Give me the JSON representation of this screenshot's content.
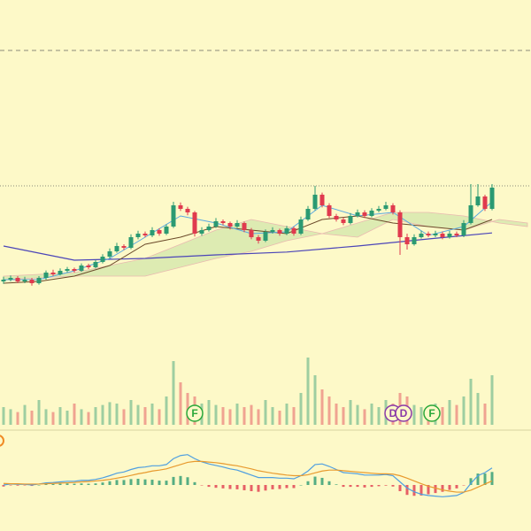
{
  "chart_data": {
    "type": "candlestick",
    "colors": {
      "up": "#2b9a72",
      "down": "#e03a4e",
      "ma_long": "#4b45b8",
      "ma_fast": "#5aa9e0",
      "ma_slow": "#6b4a2a",
      "cloud": "#cfe6a8",
      "macd": "#4f9fe0",
      "signal": "#e89a2e"
    },
    "ylim": [
      0,
      100
    ],
    "reference_lines": [
      85.75,
      47.5
    ],
    "candles": [
      [
        20.5,
        21.8,
        19.8,
        21
      ],
      [
        21,
        22.2,
        20.5,
        21.5
      ],
      [
        21.5,
        22,
        20,
        20.5
      ],
      [
        20.5,
        21.8,
        20,
        21
      ],
      [
        21,
        21.5,
        19.3,
        20
      ],
      [
        20,
        22,
        19.6,
        21.5
      ],
      [
        21.5,
        23.6,
        21,
        23
      ],
      [
        23,
        23.8,
        22,
        22.5
      ],
      [
        22.5,
        24.2,
        22.2,
        23.5
      ],
      [
        23.5,
        24.6,
        23,
        24
      ],
      [
        24,
        24.4,
        23,
        23.5
      ],
      [
        23.5,
        25.6,
        23.2,
        25
      ],
      [
        25,
        25.5,
        24,
        24.5
      ],
      [
        24.5,
        26.6,
        24.2,
        26
      ],
      [
        26,
        28.2,
        25.6,
        27.5
      ],
      [
        27.5,
        29.8,
        27,
        29
      ],
      [
        29,
        31.4,
        28.6,
        30.5
      ],
      [
        30.5,
        31,
        29.4,
        30
      ],
      [
        30,
        33.8,
        29.6,
        33
      ],
      [
        33,
        34.8,
        32.4,
        34
      ],
      [
        34,
        34.6,
        33,
        33.5
      ],
      [
        33.5,
        35.8,
        33,
        35
      ],
      [
        35,
        35.5,
        33.4,
        34
      ],
      [
        34,
        36.6,
        33.6,
        36
      ],
      [
        36,
        43,
        35.6,
        42
      ],
      [
        42,
        42.8,
        40.4,
        41
      ],
      [
        41,
        41.6,
        39.2,
        40
      ],
      [
        40,
        40.4,
        33.2,
        34
      ],
      [
        34,
        35.8,
        33.4,
        35
      ],
      [
        35,
        36.8,
        34.6,
        36
      ],
      [
        36,
        38.4,
        35.6,
        37.5
      ],
      [
        37.5,
        38,
        36.4,
        37
      ],
      [
        37,
        37.4,
        35.2,
        36
      ],
      [
        36,
        37.8,
        35.6,
        37
      ],
      [
        37,
        37.4,
        34.4,
        35
      ],
      [
        35,
        35.6,
        32.4,
        33
      ],
      [
        33,
        33.6,
        31.2,
        32
      ],
      [
        32,
        35.2,
        31.6,
        34.5
      ],
      [
        34.5,
        35.8,
        34,
        35
      ],
      [
        35,
        35.4,
        33.4,
        34
      ],
      [
        34,
        36.2,
        33.6,
        35.5
      ],
      [
        35.5,
        36,
        33.4,
        34
      ],
      [
        34,
        38.8,
        33.6,
        38
      ],
      [
        38,
        41.8,
        37.6,
        41
      ],
      [
        41,
        47.5,
        40.6,
        45
      ],
      [
        45,
        45.6,
        41.4,
        42
      ],
      [
        42,
        42.6,
        38.4,
        39
      ],
      [
        39,
        39.6,
        37.4,
        38
      ],
      [
        38,
        38.6,
        36.4,
        37
      ],
      [
        37,
        39.8,
        36.6,
        39
      ],
      [
        39,
        40.8,
        38.6,
        40
      ],
      [
        40,
        40.6,
        38.4,
        39
      ],
      [
        39,
        41.2,
        38.6,
        40.5
      ],
      [
        40.5,
        41.8,
        40,
        41
      ],
      [
        41,
        43,
        40.6,
        42
      ],
      [
        42,
        42.6,
        39.4,
        40
      ],
      [
        40,
        40.6,
        28,
        33
      ],
      [
        33,
        34,
        29.5,
        31
      ],
      [
        31,
        33.8,
        30.6,
        33
      ],
      [
        33,
        34.8,
        32.6,
        34
      ],
      [
        34,
        34.6,
        33,
        33.5
      ],
      [
        33.5,
        34.8,
        33,
        34
      ],
      [
        34,
        34.6,
        32.4,
        33
      ],
      [
        33,
        34.8,
        32.6,
        34
      ],
      [
        34,
        34.6,
        33,
        33.5
      ],
      [
        33.5,
        37.8,
        33,
        37
      ],
      [
        37,
        48,
        36.6,
        42
      ],
      [
        42,
        48,
        41.6,
        44.5
      ],
      [
        44.5,
        45,
        40.4,
        41
      ],
      [
        41,
        48,
        40.6,
        47
      ]
    ],
    "ma_long": {
      "x": [
        0,
        10,
        20,
        30,
        40,
        50,
        60,
        69
      ],
      "values": [
        30.5,
        26.5,
        27,
        28,
        28.8,
        30.5,
        32.5,
        34.2
      ]
    },
    "ma_fast": {
      "x": [
        0,
        5,
        10,
        15,
        20,
        25,
        30,
        35,
        40,
        45,
        50,
        55,
        60,
        65,
        69
      ],
      "values": [
        21,
        21,
        23.5,
        27,
        33,
        39,
        37,
        34,
        34.5,
        42,
        39,
        40,
        33.5,
        36,
        43
      ]
    },
    "ma_slow": {
      "x": [
        0,
        5,
        10,
        15,
        20,
        25,
        30,
        35,
        40,
        45,
        50,
        55,
        60,
        65,
        69
      ],
      "values": [
        20,
        20.5,
        22,
        25,
        31,
        33,
        36,
        35,
        34,
        38,
        39,
        37,
        36,
        35,
        38
      ]
    },
    "cloud": {
      "x": [
        0,
        10,
        15,
        20,
        30,
        35,
        40,
        45,
        50,
        55,
        60,
        65,
        70,
        74
      ],
      "span_a": [
        22,
        23,
        25,
        27,
        35,
        38,
        36,
        34,
        37,
        40,
        40,
        39,
        37,
        36
      ],
      "span_b": [
        21,
        22,
        22,
        22,
        27,
        29,
        32,
        34,
        33,
        38,
        36,
        35,
        38,
        37
      ]
    },
    "volume": {
      "ylim": [
        0,
        100
      ],
      "values": [
        25,
        22,
        18,
        28,
        20,
        35,
        22,
        18,
        25,
        20,
        30,
        22,
        18,
        25,
        28,
        32,
        30,
        22,
        35,
        28,
        25,
        30,
        22,
        40,
        90,
        60,
        45,
        40,
        30,
        35,
        28,
        25,
        22,
        30,
        25,
        28,
        22,
        35,
        25,
        20,
        30,
        25,
        45,
        95,
        70,
        50,
        40,
        30,
        25,
        35,
        28,
        22,
        30,
        25,
        35,
        30,
        45,
        40,
        28,
        25,
        22,
        30,
        25,
        35,
        28,
        40,
        65,
        45,
        30,
        70
      ]
    },
    "macd": {
      "ylim": [
        -12,
        12
      ],
      "macd": [
        0,
        0.3,
        0.2,
        0.2,
        0,
        0.3,
        0.7,
        0.8,
        1,
        1.2,
        1.2,
        1.5,
        1.5,
        1.8,
        2.3,
        3,
        3.8,
        4.2,
        5,
        5.6,
        5.8,
        6.2,
        6.2,
        6.6,
        8.5,
        9.5,
        9.8,
        8.5,
        7.5,
        6.8,
        6.3,
        5.8,
        5.2,
        4.8,
        4,
        3.2,
        2.4,
        2.4,
        2.4,
        2.2,
        2.2,
        2,
        3,
        4.5,
        6.6,
        6.8,
        6,
        5,
        4,
        3.8,
        3.6,
        3.2,
        3.2,
        3.2,
        3.4,
        3,
        1,
        -1,
        -2.2,
        -3,
        -3.4,
        -3.6,
        -3.8,
        -3.6,
        -3.4,
        -2.4,
        0.5,
        3,
        4,
        5.5
      ],
      "signal": [
        0.5,
        0.4,
        0.4,
        0.3,
        0.3,
        0.3,
        0.4,
        0.5,
        0.6,
        0.7,
        0.8,
        1,
        1.1,
        1.3,
        1.5,
        1.8,
        2.2,
        2.6,
        3.1,
        3.6,
        4,
        4.5,
        4.8,
        5.2,
        5.9,
        6.6,
        7.3,
        7.6,
        7.6,
        7.4,
        7.2,
        6.9,
        6.5,
        6.2,
        5.7,
        5.2,
        4.6,
        4.2,
        3.8,
        3.5,
        3.2,
        3,
        3,
        3.3,
        3.9,
        4.5,
        4.8,
        4.8,
        4.6,
        4.4,
        4.2,
        4,
        3.8,
        3.6,
        3.6,
        3.5,
        3,
        2.2,
        1.3,
        0.4,
        -0.4,
        -1,
        -1.6,
        -2,
        -2.3,
        -2.3,
        -1.7,
        -0.7,
        0.3,
        1.3
      ],
      "histogram": [
        -0.5,
        -0.1,
        -0.2,
        -0.1,
        -0.3,
        0,
        0.3,
        0.3,
        0.4,
        0.5,
        0.4,
        0.5,
        0.4,
        0.5,
        0.8,
        1.2,
        1.6,
        1.6,
        1.9,
        2,
        1.8,
        1.7,
        1.4,
        1.4,
        2.6,
        2.9,
        2.5,
        0.9,
        -0.1,
        -0.6,
        -0.9,
        -1.1,
        -1.3,
        -1.4,
        -1.7,
        -2,
        -2.2,
        -1.8,
        -1.4,
        -1.3,
        -1,
        -1,
        0,
        1.2,
        2.7,
        2.3,
        1.2,
        0.2,
        -0.6,
        -0.6,
        -0.6,
        -0.8,
        -0.6,
        -0.4,
        -0.2,
        -0.5,
        -2,
        -3.2,
        -3.5,
        -3.4,
        -3,
        -2.6,
        -2.2,
        -1.6,
        -1.1,
        -0.1,
        2.2,
        3.7,
        3.7,
        4.2
      ]
    },
    "events": [
      {
        "x": 27,
        "label": "F",
        "color": "#2aa83a"
      },
      {
        "x": 55,
        "label": "D",
        "color": "#8a3aa8"
      },
      {
        "x": 56.5,
        "label": "D",
        "color": "#8a3aa8"
      },
      {
        "x": 60.5,
        "label": "F",
        "color": "#2aa83a"
      }
    ]
  }
}
